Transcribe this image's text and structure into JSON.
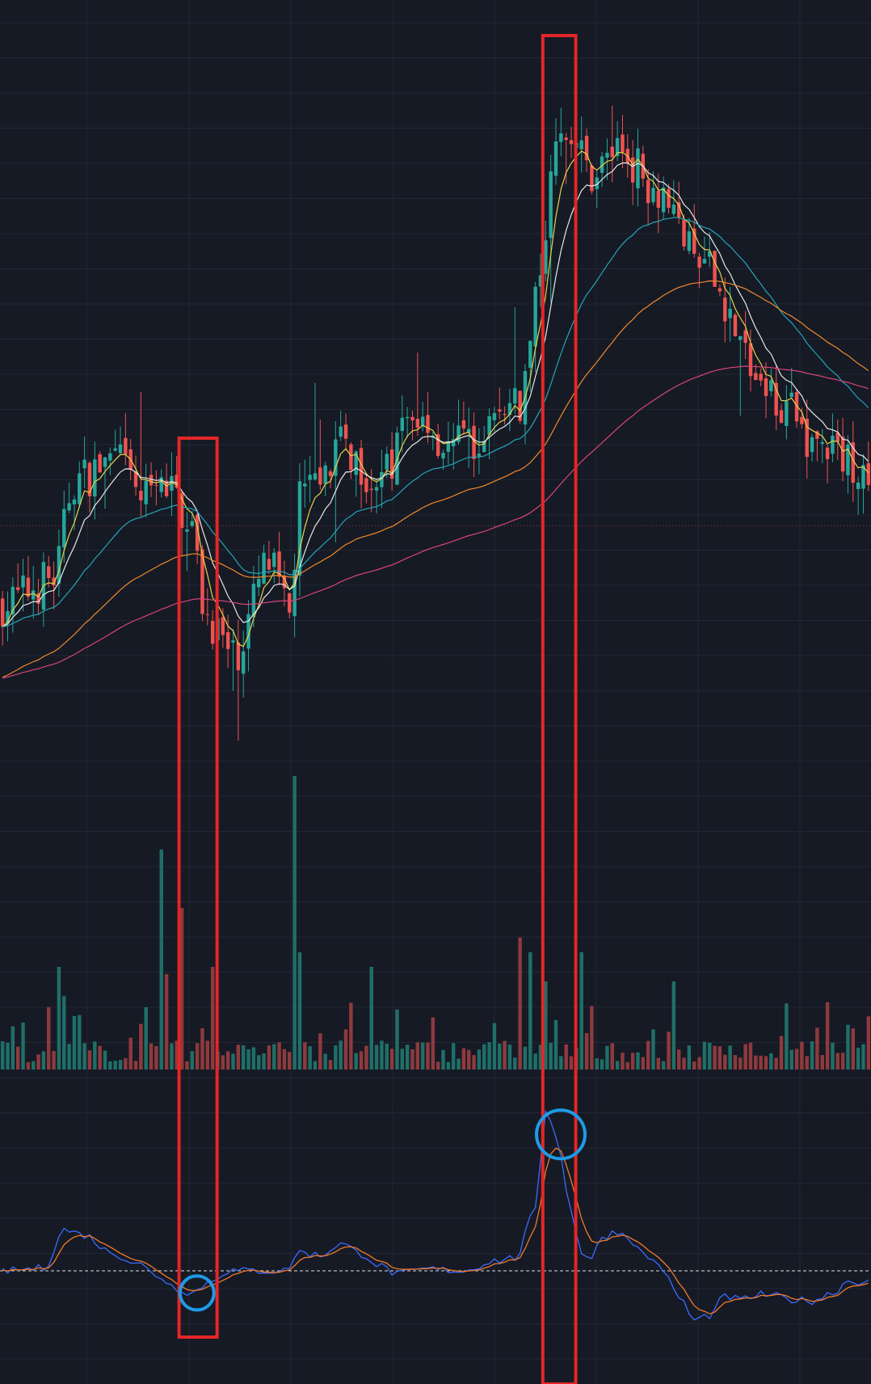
{
  "colors": {
    "background": "#161a25",
    "grid": "#222734",
    "candle_up": "#26a69a",
    "candle_down": "#ef5350",
    "ma_fast": "#e6d24a",
    "ma_mid": "#e8e8e8",
    "ma_slow": "#22a6b8",
    "ma_long": "#ef8a2a",
    "ma_longest": "#d9457a",
    "osc_fast": "#3a6bff",
    "osc_slow": "#f07a2a",
    "highlight_box": "#e32626",
    "highlight_circle": "#1e9be6",
    "zero_line": "#ffffff"
  },
  "chart_data": [
    {
      "type": "candlestick",
      "panel": "price",
      "price_scale": [
        0,
        100
      ],
      "candles": {
        "count": 170,
        "anchors": [
          [
            0,
            6
          ],
          [
            10,
            10
          ],
          [
            14,
            25
          ],
          [
            22,
            28
          ],
          [
            28,
            22
          ],
          [
            32,
            24
          ],
          [
            36,
            20
          ],
          [
            40,
            4
          ],
          [
            45,
            -2
          ],
          [
            52,
            12
          ],
          [
            56,
            4
          ],
          [
            58,
            22
          ],
          [
            66,
            30
          ],
          [
            74,
            25
          ],
          [
            80,
            35
          ],
          [
            88,
            30
          ],
          [
            100,
            36
          ],
          [
            110,
            80
          ],
          [
            115,
            72
          ],
          [
            120,
            76
          ],
          [
            128,
            70
          ],
          [
            136,
            58
          ],
          [
            150,
            38
          ],
          [
            160,
            30
          ],
          [
            170,
            26
          ]
        ]
      },
      "moving_averages": [
        {
          "color_key": "ma_fast",
          "period": 5
        },
        {
          "color_key": "ma_mid",
          "period": 10
        },
        {
          "color_key": "ma_slow",
          "period": 30
        },
        {
          "color_key": "ma_long",
          "period": 60
        },
        {
          "color_key": "ma_longest",
          "period": 120
        }
      ],
      "reference_level": 18,
      "grid": true
    },
    {
      "type": "bar",
      "panel": "volume",
      "grid": true,
      "spikes": [
        [
          11,
          14
        ],
        [
          12,
          10
        ],
        [
          31,
          30
        ],
        [
          32,
          13
        ],
        [
          35,
          22
        ],
        [
          41,
          14
        ],
        [
          57,
          40
        ],
        [
          58,
          16
        ],
        [
          72,
          14
        ],
        [
          101,
          18
        ],
        [
          103,
          16
        ],
        [
          106,
          12
        ],
        [
          113,
          16
        ],
        [
          131,
          12
        ],
        [
          153,
          9
        ]
      ]
    },
    {
      "type": "line",
      "panel": "oscillator",
      "zero_line": 0,
      "series": [
        {
          "color_key": "osc_fast"
        },
        {
          "color_key": "osc_slow"
        }
      ],
      "anchors": [
        [
          0,
          0
        ],
        [
          8,
          0.3
        ],
        [
          12,
          4.8
        ],
        [
          16,
          4.2
        ],
        [
          21,
          2.2
        ],
        [
          26,
          1.0
        ],
        [
          30,
          -0.5
        ],
        [
          34,
          -2.0
        ],
        [
          37,
          -2.6
        ],
        [
          40,
          -1.4
        ],
        [
          44,
          0
        ],
        [
          55,
          0
        ],
        [
          58,
          2.2
        ],
        [
          62,
          1.8
        ],
        [
          66,
          3.2
        ],
        [
          70,
          2.0
        ],
        [
          74,
          0.5
        ],
        [
          77,
          -0.4
        ],
        [
          83,
          0.2
        ],
        [
          90,
          0
        ],
        [
          96,
          1.2
        ],
        [
          100,
          1.5
        ],
        [
          104,
          7.0
        ],
        [
          106,
          19.0
        ],
        [
          108,
          16.0
        ],
        [
          111,
          7.0
        ],
        [
          113,
          2.2
        ],
        [
          115,
          1.4
        ],
        [
          117,
          4.0
        ],
        [
          120,
          4.6
        ],
        [
          122,
          4.0
        ],
        [
          125,
          2.0
        ],
        [
          128,
          0.8
        ],
        [
          132,
          -3.0
        ],
        [
          135,
          -5.8
        ],
        [
          138,
          -5.2
        ],
        [
          141,
          -3.0
        ],
        [
          144,
          -3.4
        ],
        [
          148,
          -2.8
        ],
        [
          151,
          -3.0
        ],
        [
          154,
          -3.4
        ],
        [
          158,
          -3.5
        ],
        [
          162,
          -2.6
        ],
        [
          165,
          -1.2
        ],
        [
          170,
          -1.4
        ]
      ],
      "grid": true
    }
  ],
  "annotations": {
    "boxes": [
      {
        "start_bar": 34,
        "end_bar": 42
      },
      {
        "start_bar": 105,
        "end_bar": 112
      }
    ],
    "circles": [
      {
        "bar": 37,
        "panel": "oscillator",
        "value": -2.6
      },
      {
        "bar": 108,
        "panel": "oscillator",
        "value": 16.0
      }
    ]
  }
}
